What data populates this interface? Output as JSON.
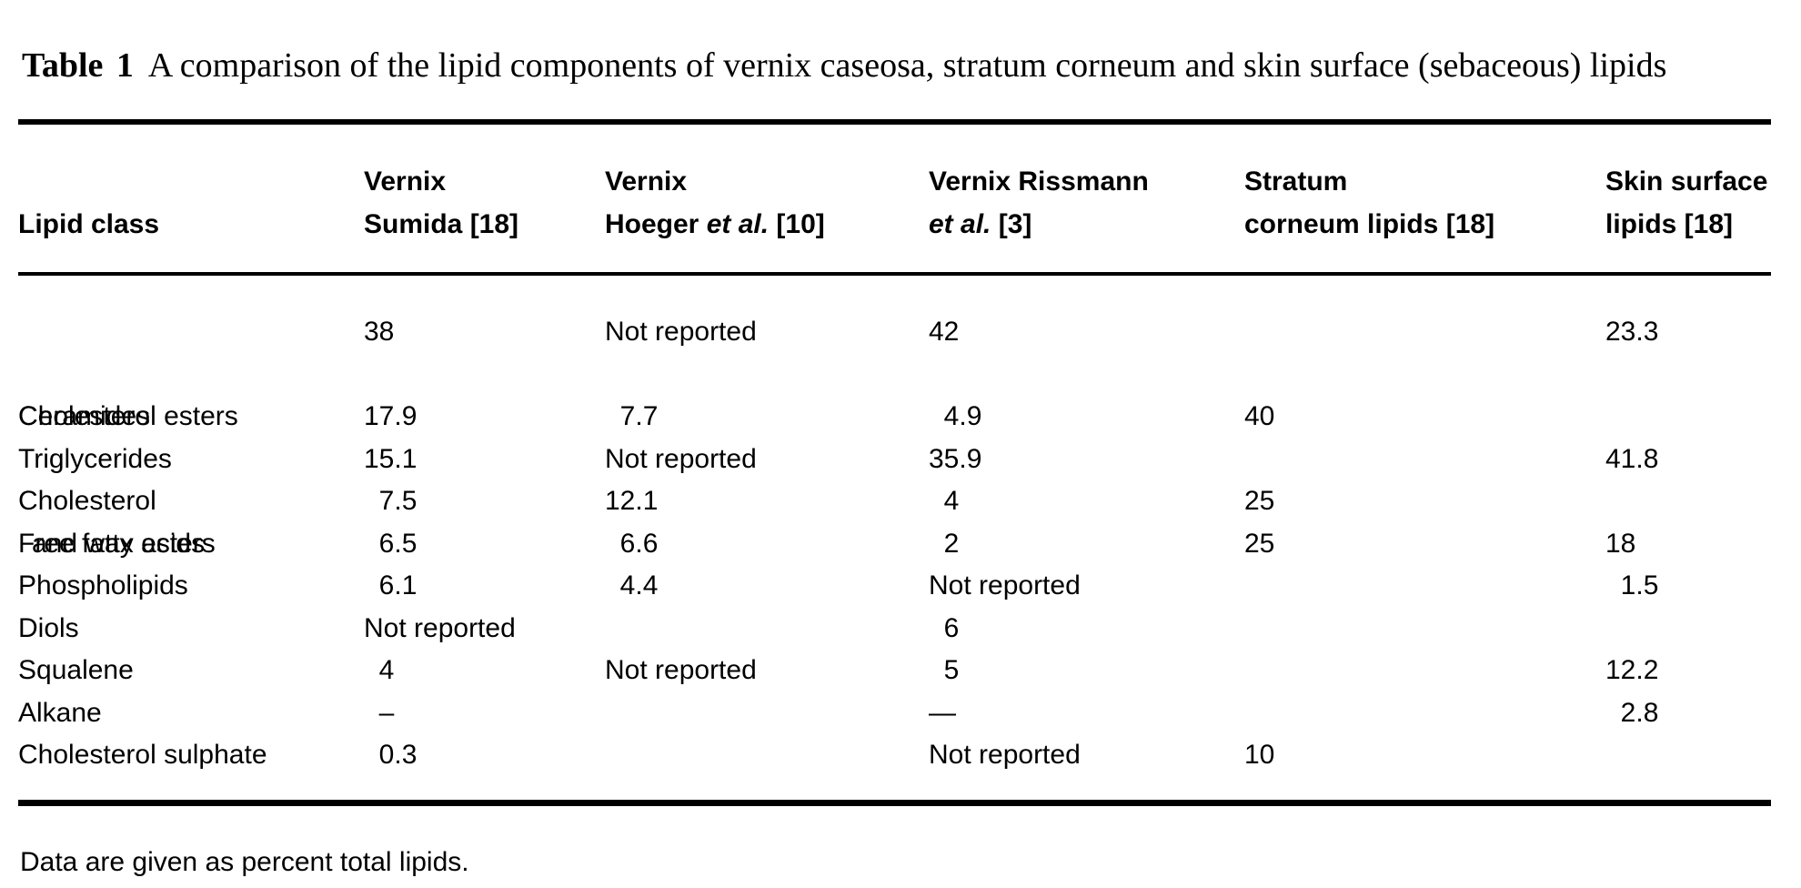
{
  "title": {
    "label": "Table 1",
    "text": "A comparison of the lipid components of vernix caseosa, stratum corneum and skin surface (sebaceous) lipids"
  },
  "table": {
    "header": {
      "col1": {
        "line1": "",
        "line2_pre": "Lipid class",
        "line2_em": "",
        "line2_post": ""
      },
      "col2": {
        "line1": "Vernix",
        "line2_pre": "Sumida [18]",
        "line2_em": "",
        "line2_post": ""
      },
      "col3": {
        "line1": "Vernix",
        "line2_pre": "Hoeger ",
        "line2_em": "et al.",
        "line2_post": " [10]"
      },
      "col4": {
        "line1": "Vernix Rissmann",
        "line2_pre": "",
        "line2_em": "et al.",
        "line2_post": " [3]"
      },
      "col5": {
        "line1": "Stratum",
        "line2_pre": "corneum lipids [18]",
        "line2_em": "",
        "line2_post": ""
      },
      "col6": {
        "line1": "Skin surface",
        "line2_pre": "lipids [18]",
        "line2_em": "",
        "line2_post": ""
      }
    },
    "rows": [
      {
        "name": "Cholesterol esters",
        "name2": "and wax esters",
        "sumida": "38",
        "hoeger": "Not reported",
        "rissmann": "42",
        "stratum": "",
        "skin": "23.3"
      },
      {
        "name": "Ceramides",
        "sumida": "17.9",
        "hoeger": "  7.7",
        "rissmann": "  4.9",
        "stratum": "40",
        "skin": ""
      },
      {
        "name": "Triglycerides",
        "sumida": "15.1",
        "hoeger": "Not reported",
        "rissmann": "35.9",
        "stratum": "",
        "skin": "41.8"
      },
      {
        "name": "Cholesterol",
        "sumida": "  7.5",
        "hoeger": "12.1",
        "rissmann": "  4",
        "stratum": "25",
        "skin": ""
      },
      {
        "name": "Free fatty acids",
        "sumida": "  6.5",
        "hoeger": "  6.6",
        "rissmann": "  2",
        "stratum": "25",
        "skin": "18"
      },
      {
        "name": "Phospholipids",
        "sumida": "  6.1",
        "hoeger": "  4.4",
        "rissmann": "Not reported",
        "stratum": "",
        "skin": "  1.5"
      },
      {
        "name": "Diols",
        "sumida": "Not reported",
        "hoeger": "",
        "rissmann": "  6",
        "stratum": "",
        "skin": ""
      },
      {
        "name": "Squalene",
        "sumida": "  4",
        "hoeger": "Not reported",
        "rissmann": "  5",
        "stratum": "",
        "skin": "12.2"
      },
      {
        "name": "Alkane",
        "sumida": "  –",
        "hoeger": "",
        "rissmann": "—",
        "stratum": "",
        "skin": "  2.8"
      },
      {
        "name": "Cholesterol sulphate",
        "sumida": "  0.3",
        "hoeger": "",
        "rissmann": "Not reported",
        "stratum": "10",
        "skin": ""
      }
    ]
  },
  "footnote": "Data are given as percent total lipids.",
  "colors": {
    "text": "#000000",
    "background": "#ffffff",
    "rule": "#000000"
  }
}
